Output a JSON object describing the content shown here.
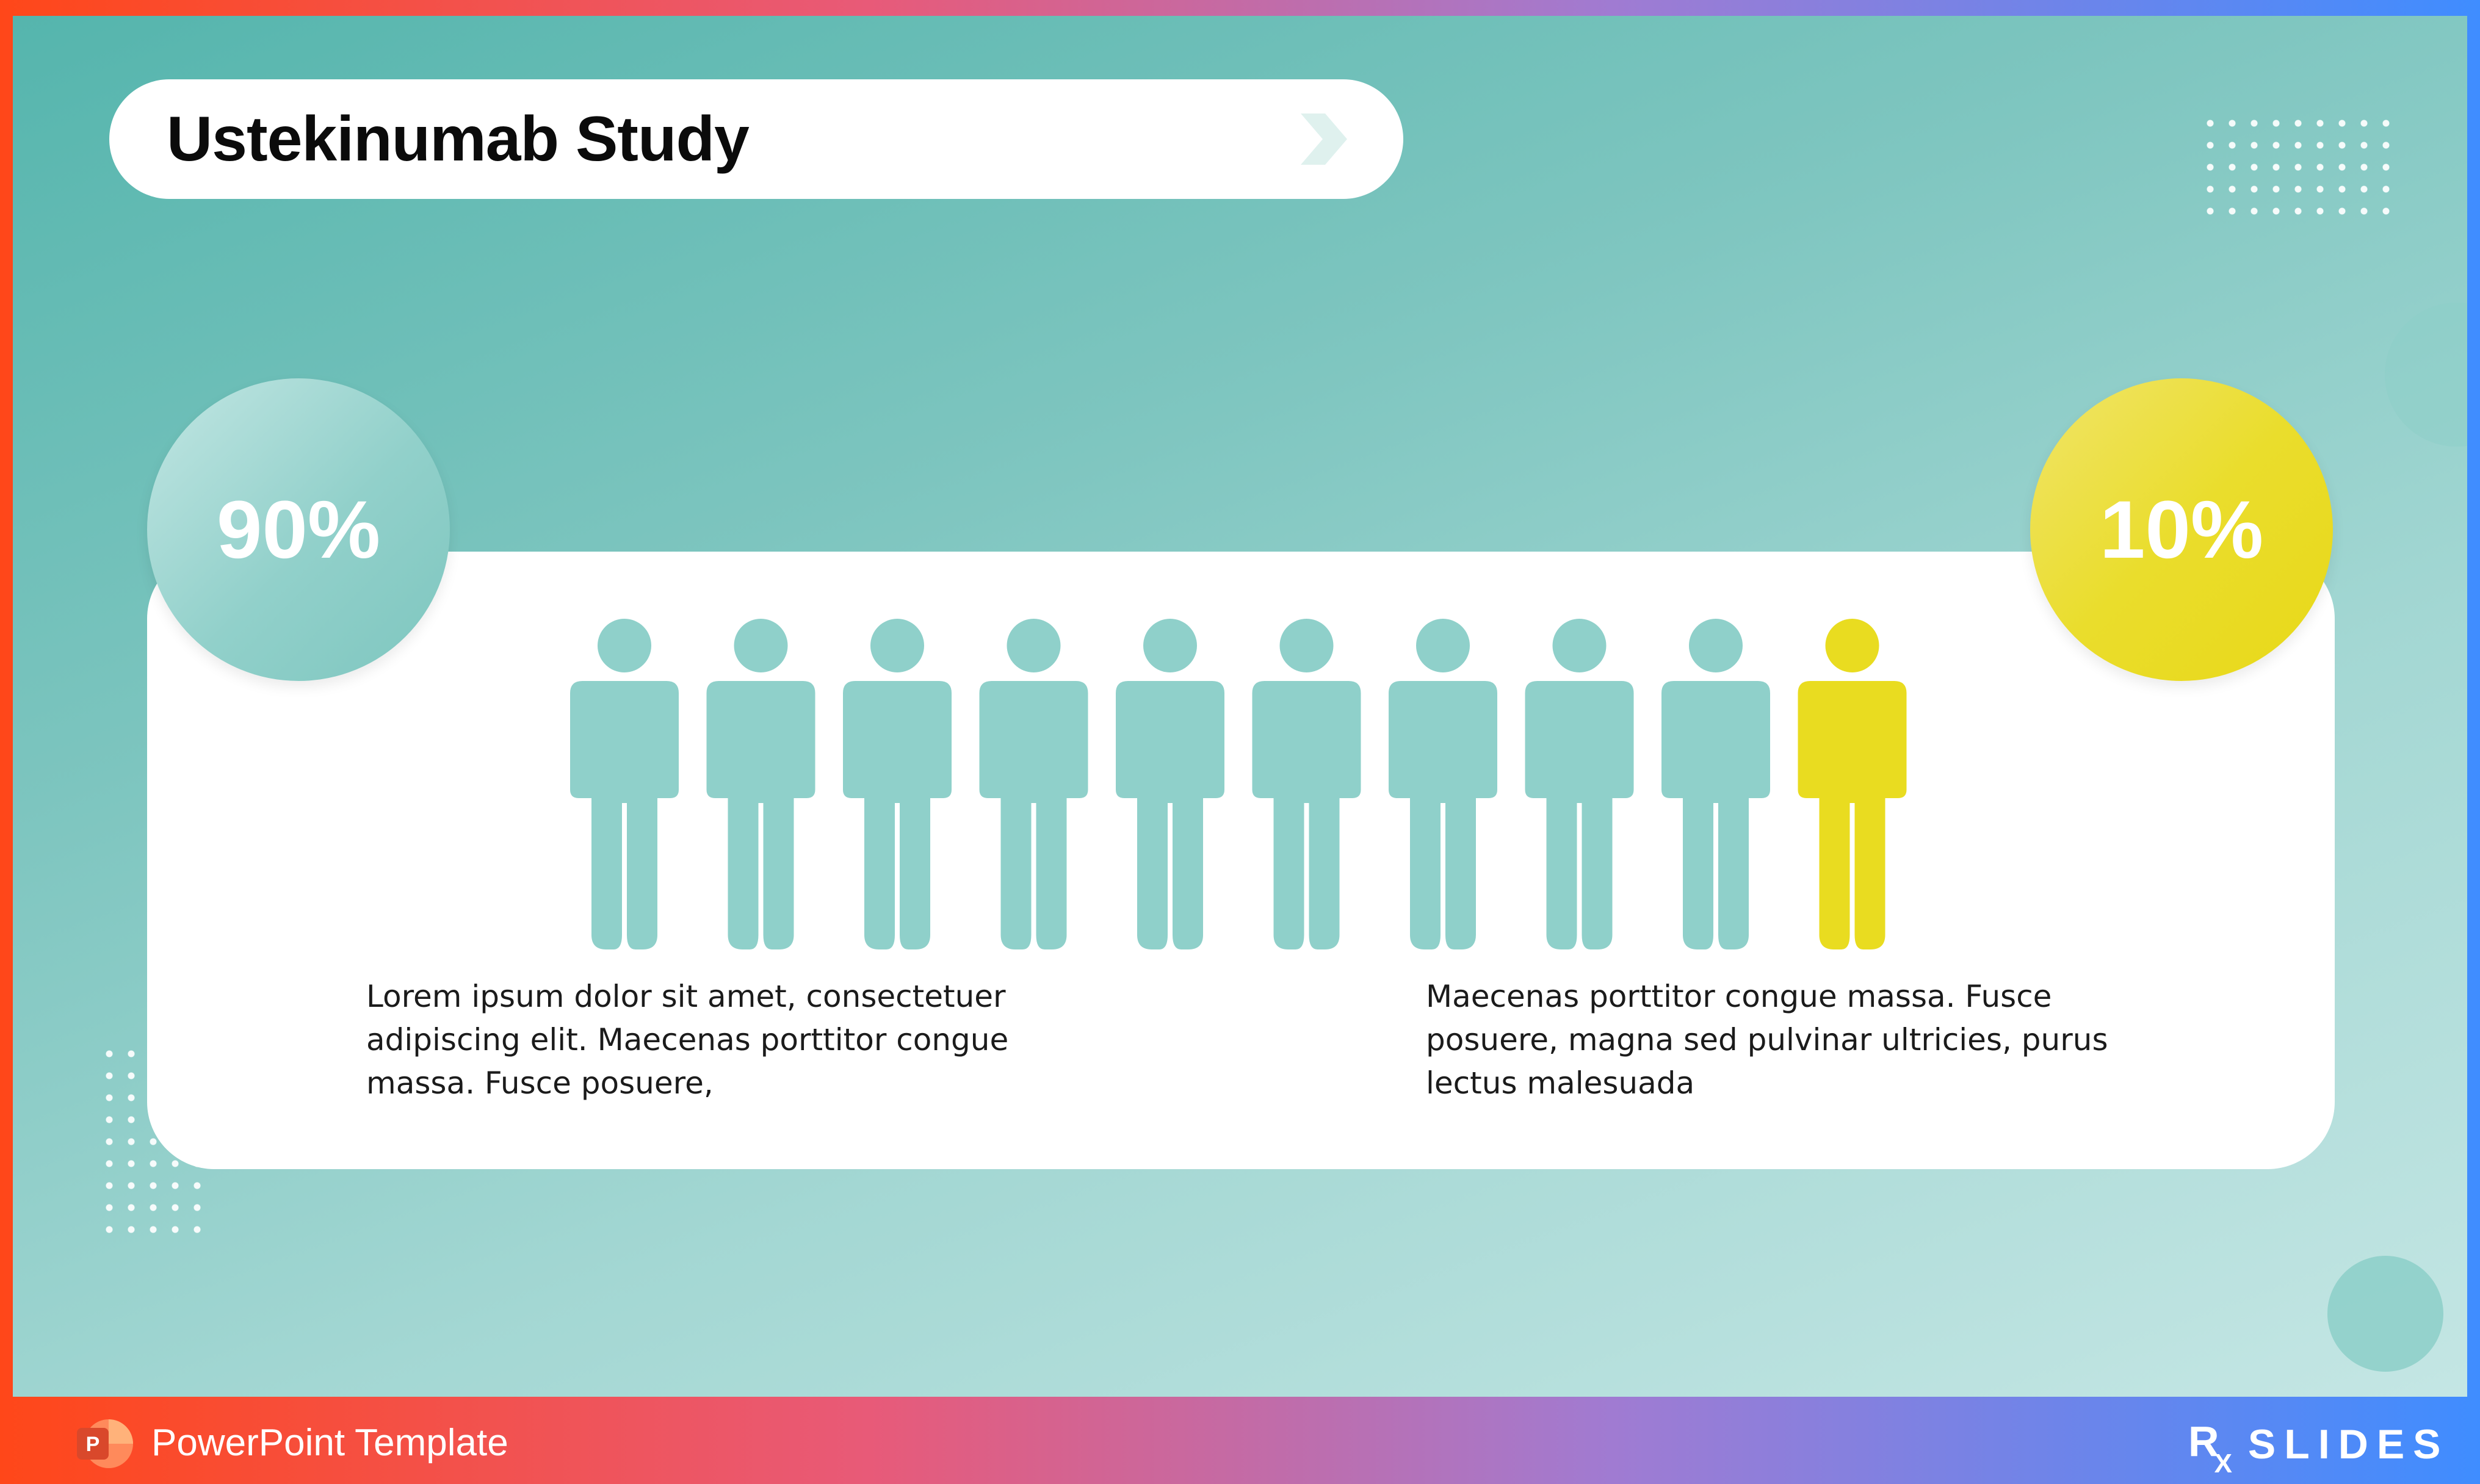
{
  "slide": {
    "title": "Ustekinumab Study"
  },
  "stats": {
    "left_percent": "90%",
    "right_percent": "10%",
    "left_color": "#8fd0ca",
    "right_color": "#e9dc20"
  },
  "people_chart": {
    "total": 10,
    "highlighted": 1,
    "base_color": "#8fd0ca",
    "highlight_color": "#e9dc20"
  },
  "captions": {
    "left": "Lorem ipsum dolor sit amet, consectetuer\nadipiscing elit. Maecenas porttitor congue\nmassa. Fusce posuere,",
    "right": "Maecenas porttitor congue massa. Fusce\nposuere, magna sed pulvinar ultricies, purus\nlectus malesuada"
  },
  "footer": {
    "label": "PowerPoint Template",
    "brand_mark": "R",
    "brand_sub": "X",
    "brand_word": "SLIDES",
    "app_icon": "powerpoint-icon"
  },
  "theme": {
    "frame_gradient": [
      "#ff4719",
      "#e85a78",
      "#a07bd2",
      "#3f8dff"
    ],
    "background_teal": "#55b5ad"
  }
}
